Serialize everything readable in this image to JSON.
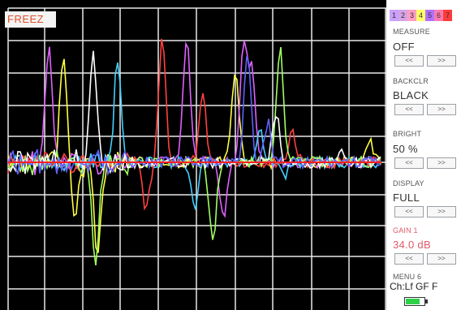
{
  "freeze_label": "FREEZ",
  "channel_tabs": [
    {
      "label": "1",
      "color": "#c9a0ff"
    },
    {
      "label": "2",
      "color": "#d6a3e8"
    },
    {
      "label": "3",
      "color": "#ff9ec2"
    },
    {
      "label": "4",
      "color": "#ffff66"
    },
    {
      "label": "5",
      "color": "#b070ff"
    },
    {
      "label": "6",
      "color": "#ff7ab0"
    },
    {
      "label": "7",
      "color": "#ff3b3b"
    }
  ],
  "measure": {
    "label": "MEASURE",
    "value": "OFF",
    "left": "<<",
    "right": ">>"
  },
  "backclr": {
    "label": "BACKCLR",
    "value": "BLACK",
    "left": "<<",
    "right": ">>"
  },
  "bright": {
    "label": "BRIGHT",
    "value": "50  %",
    "left": "<<",
    "right": ">>"
  },
  "display": {
    "label": "DISPLAY",
    "value": "FULL",
    "left": "<<",
    "right": ">>"
  },
  "gain": {
    "label": "GAIN  1",
    "value": "34.0  dB",
    "left": "<<",
    "right": ">>",
    "color": "#e05a6a"
  },
  "menu": {
    "label": "MENU 6",
    "value": "Ch:Lf GF F"
  },
  "battery_level": 0.75,
  "colors": {
    "grid": "#e8e8e8",
    "baseline": "#ff2020"
  }
}
